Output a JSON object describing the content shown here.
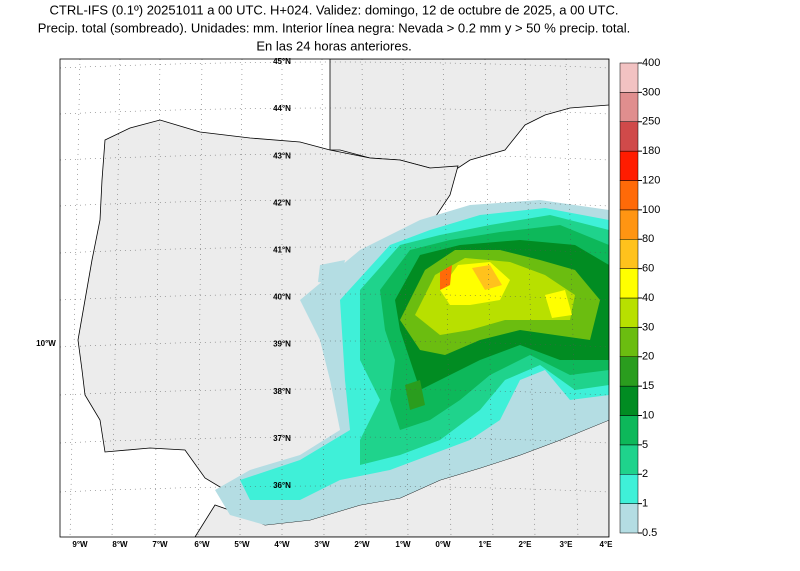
{
  "header": {
    "lines": [
      "CTRL-IFS (0.1º) 20251011 a 00 UTC. H+024. Validez: domingo, 12 de octubre de 2025, a 00 UTC.",
      "Precip. total (sombreado). Unidades: mm. Interior línea negra: Nevada > 0.2 mm y > 50 % precip. total.",
      "En las 24 horas anteriores."
    ]
  },
  "map": {
    "lon_labels": [
      "9°W",
      "8°W",
      "7°W",
      "6°W",
      "5°W",
      "4°W",
      "3°W",
      "2°W",
      "1°W",
      "0°W",
      "1°E",
      "2°E",
      "3°E",
      "4°E"
    ],
    "lat_labels": [
      "45°N",
      "44°N",
      "43°N",
      "42°N",
      "41°N",
      "40°N",
      "39°N",
      "38°N",
      "37°N",
      "36°N"
    ],
    "edge_label": "10°W"
  },
  "colorbar": {
    "levels": [
      0.5,
      1,
      2,
      5,
      10,
      15,
      20,
      30,
      40,
      60,
      80,
      100,
      120,
      180,
      250,
      300,
      400
    ],
    "colors": [
      "#b4dde3",
      "#3ff0d8",
      "#1fd38c",
      "#0db85a",
      "#018c22",
      "#2a9d1e",
      "#6bbd10",
      "#b8e000",
      "#ffff00",
      "#ffc21c",
      "#ff9512",
      "#ff6a08",
      "#ff1c00",
      "#d04a4a",
      "#e08e8e",
      "#f2c2c2"
    ]
  }
}
